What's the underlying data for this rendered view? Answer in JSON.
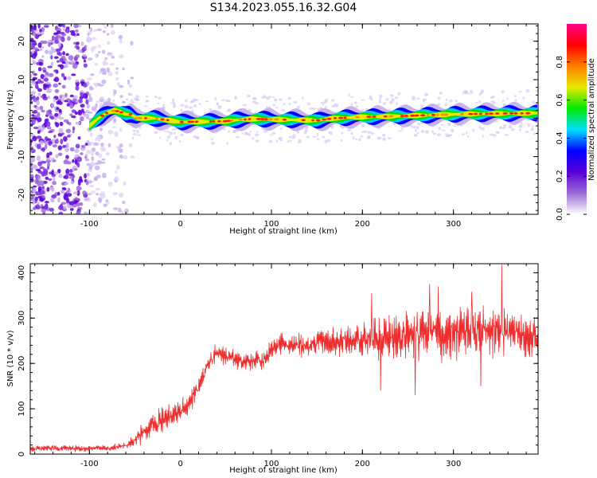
{
  "title": "S134.2023.055.16.32.G04",
  "colors": {
    "snr_line": "#ee2e2e",
    "axis": "#000000",
    "background": "#ffffff"
  },
  "chart_data": [
    {
      "type": "heatmap",
      "xlabel": "Height of straight line (km)",
      "ylabel": "Frequency (Hz)",
      "xlim": [
        -165,
        393
      ],
      "ylim": [
        -25,
        24.5
      ],
      "x_ticks": [
        -100,
        0,
        100,
        200,
        300
      ],
      "y_ticks": [
        -20,
        -10,
        0,
        10,
        20
      ],
      "colorbar": {
        "label": "Normalized spectral amplitude",
        "range": [
          0,
          1
        ],
        "ticks": [
          "0.0",
          "0.2",
          "0.4",
          "0.6",
          "0.8"
        ],
        "colors": [
          "#ffffff",
          "#9b6bd6",
          "#5a00d8",
          "#0000ff",
          "#00e0ff",
          "#00e800",
          "#e8e800",
          "#ff7f00",
          "#ff0000",
          "#ff0088"
        ]
      },
      "ridge": {
        "x": [
          -100,
          -90,
          -80,
          -72,
          -65,
          -60,
          -55,
          -48,
          -40,
          -30,
          0,
          50,
          60,
          80,
          100,
          150,
          170,
          200,
          250,
          300,
          350,
          393
        ],
        "freq": [
          -2,
          0,
          1.5,
          2,
          1.5,
          1,
          1,
          0,
          0,
          0,
          -1,
          -0.8,
          -0.5,
          -0.2,
          -0.3,
          -0.6,
          0,
          0.3,
          0.6,
          1,
          1.2,
          1.3
        ]
      },
      "noise_region_x": [
        -165,
        -60
      ]
    },
    {
      "type": "line",
      "xlabel": "Height of straight line (km)",
      "ylabel": "SNR (10 * v/v)",
      "xlim": [
        -165,
        393
      ],
      "ylim": [
        0,
        420
      ],
      "x_ticks": [
        -100,
        0,
        100,
        200,
        300
      ],
      "y_ticks": [
        0,
        100,
        200,
        300,
        400
      ],
      "series": [
        {
          "x": [
            -165,
            -140,
            -120,
            -100,
            -80,
            -60,
            -50,
            -40,
            -30,
            -20,
            -10,
            0,
            10,
            20,
            30,
            40,
            50,
            60,
            70,
            80,
            90,
            100,
            110,
            120,
            140,
            160,
            180,
            200,
            220,
            240,
            260,
            280,
            300,
            320,
            340,
            360,
            380,
            393
          ],
          "values": [
            12,
            13,
            12,
            13,
            14,
            18,
            30,
            50,
            65,
            75,
            85,
            95,
            115,
            150,
            195,
            225,
            215,
            210,
            200,
            205,
            205,
            230,
            245,
            240,
            240,
            245,
            250,
            255,
            255,
            260,
            265,
            265,
            270,
            270,
            270,
            270,
            265,
            262
          ],
          "noise_amp": [
            6,
            6,
            6,
            6,
            6,
            8,
            14,
            22,
            25,
            25,
            25,
            25,
            25,
            25,
            20,
            20,
            18,
            18,
            18,
            18,
            22,
            22,
            22,
            22,
            25,
            28,
            30,
            32,
            40,
            50,
            55,
            55,
            55,
            55,
            55,
            52,
            45,
            40
          ],
          "peaks": [
            {
              "x": 353,
              "y": 418
            },
            {
              "x": 274,
              "y": 375
            },
            {
              "x": 320,
              "y": 358
            },
            {
              "x": 283,
              "y": 370
            },
            {
              "x": 258,
              "y": 130
            },
            {
              "x": 220,
              "y": 140
            },
            {
              "x": 330,
              "y": 150
            },
            {
              "x": 210,
              "y": 355
            }
          ]
        }
      ]
    }
  ]
}
